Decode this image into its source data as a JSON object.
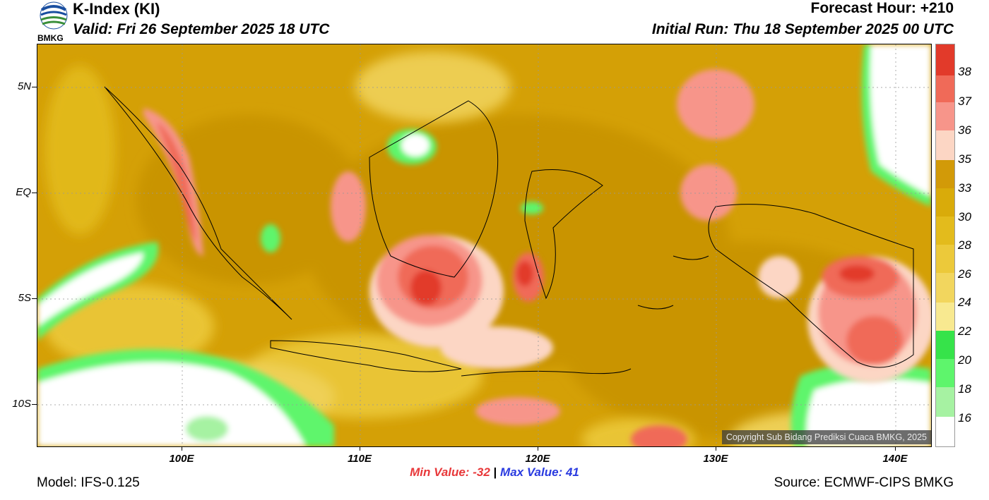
{
  "header": {
    "title": "K-Index (KI)",
    "valid": "Valid: Fri 26 September 2025 18 UTC",
    "forecast_hour": "Forecast Hour: +210",
    "initial_run": "Initial Run: Thu 18 September 2025 00 UTC"
  },
  "logo": {
    "text": "BMKG"
  },
  "map": {
    "lat_labels": [
      "5N",
      "EQ",
      "5S",
      "10S"
    ],
    "lon_labels": [
      "100E",
      "110E",
      "120E",
      "130E",
      "140E"
    ],
    "copyright": "Copyright Sub Bidang Prediksi Cuaca BMKG, 2025"
  },
  "footer": {
    "min_value": "Min Value: -32",
    "separator": "|",
    "max_value": "Max Value:  41",
    "model": "Model: IFS-0.125",
    "source": "Source: ECMWF-CIPS BMKG"
  },
  "colorbar": {
    "labels": [
      "38",
      "37",
      "36",
      "35",
      "33",
      "30",
      "28",
      "26",
      "24",
      "22",
      "20",
      "18",
      "16"
    ],
    "colors": {
      "c38": "#e23a2a",
      "c37": "#f06a58",
      "c36": "#f7958a",
      "c35": "#fcd6c4",
      "c33": "#d29a08",
      "c30": "#d9ab0a",
      "c28": "#e3bb1c",
      "c26": "#ecc93a",
      "c24": "#f2d65e",
      "c22": "#f8e990",
      "c20": "#36e34a",
      "c18": "#5ef56c",
      "c16": "#a6f2a2",
      "low": "#ffffff"
    }
  }
}
